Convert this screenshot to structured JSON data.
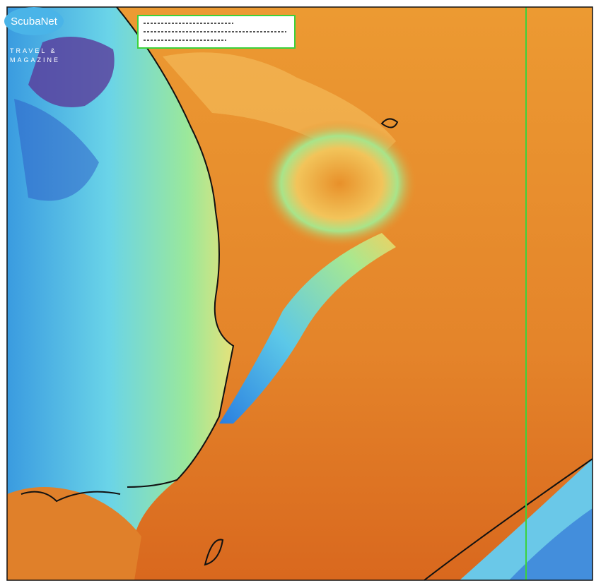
{
  "logo": {
    "name": "ScubaNet",
    "tagline_1": "TRAVEL &",
    "tagline_2": "MAGAZINE"
  }
}
